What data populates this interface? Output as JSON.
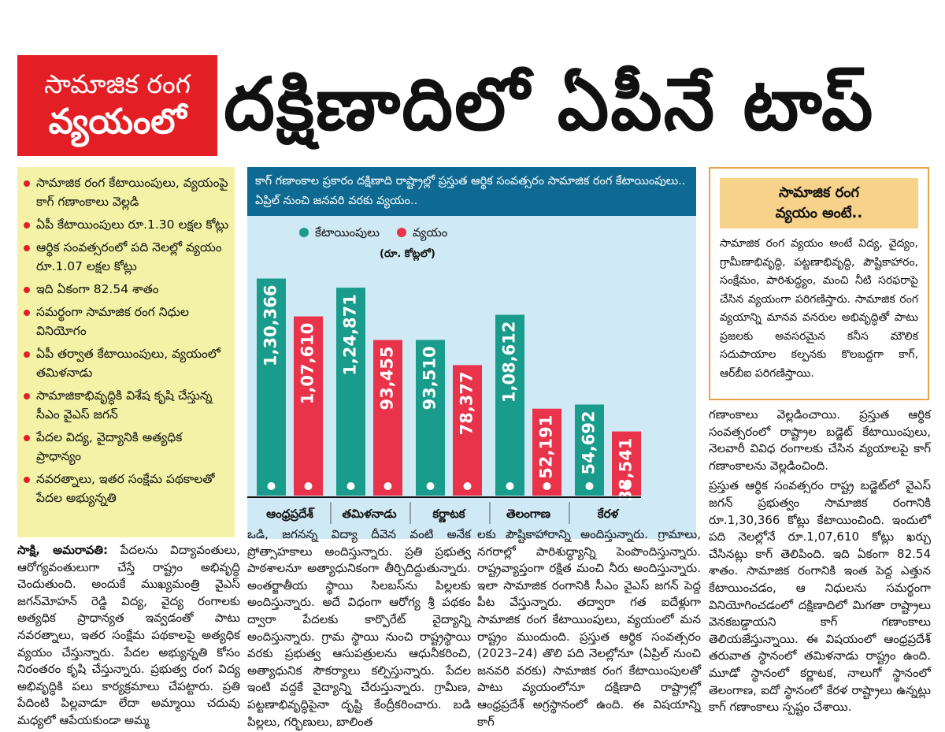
{
  "header": {
    "tag_line1": "సామాజిక రంగ",
    "tag_line2": "వ్యయంలో",
    "headline": "దక్షిణాదిలో ఏపీనే టాప్"
  },
  "bullets": [
    "సామాజిక రంగ కేటాయింపులు, వ్యయంపై కాగ్ గణాంకాలు వెల్లడి",
    "ఏపీ కేటాయింపులు రూ.1.30 లక్షల కోట్లు",
    "ఆర్థిక సంవత్సరంలో పది నెలల్లో వ్యయం రూ.1.07 లక్షల కోట్లు",
    "ఇది ఏకంగా 82.54 శాతం",
    "సమర్థంగా సామాజిక రంగ నిధుల వినియోగం",
    "ఏపీ తర్వాత కేటాయింపులు, వ్యయంలో తమిళనాడు",
    "సామాజికాభివృద్ధికి విశేష కృషి చేస్తున్న సీఎం వైఎస్ జగన్",
    "పేదల విద్య, వైద్యానికి అత్యధిక ప్రాధాన్యం",
    "నవరత్నాలు, ఇతర సంక్షేమ పథకాలతో పేదల అభ్యున్నతి"
  ],
  "chart_data": {
    "type": "bar",
    "title": "కాగ్ గణాంకాల ప్రకారం దక్షిణాది రాష్ట్రాల్లో ప్రస్తుత ఆర్థిక సంవత్సరం సామాజిక రంగ కేటాయింపులు.. ఏప్రిల్ నుంచి జనవరి వరకు వ్యయం..",
    "unit": "(రూ. కోట్లలో)",
    "categories": [
      "ఆంధ్రప్రదేశ్",
      "తమిళనాడు",
      "కర్ణాటక",
      "తెలంగాణ",
      "కేరళ"
    ],
    "series": [
      {
        "name": "కేటాయింపులు",
        "color": "#1a9c8c",
        "values": [
          130366,
          124871,
          93510,
          108612,
          54692
        ],
        "labels": [
          "1,30,366",
          "1,24,871",
          "93,510",
          "1,08,612",
          "54,692"
        ]
      },
      {
        "name": "వ్యయం",
        "color": "#e8334a",
        "values": [
          107610,
          93455,
          78377,
          52191,
          38541
        ],
        "labels": [
          "1,07,610",
          "93,455",
          "78,377",
          "52,191",
          "38,541"
        ]
      }
    ],
    "ylim": [
      0,
      150000
    ],
    "legend": "top-left",
    "grid": false
  },
  "info": {
    "title_line1": "సామాజిక రంగ",
    "title_line2": "వ్యయం అంటే..",
    "body": "సామాజిక రంగ వ్యయం అంటే విద్య, వైద్యం, గ్రామీణాభివృద్ధి, పట్టణాభివృద్ధి, పౌష్టికాహారం, సంక్షేమం, పారిశుద్ధ్యం, మంచి నీటి సరఫరాపై చేసిన వ్యయంగా పరిగణిస్తారు. సామాజిక రంగ వ్యయాన్ని మానవ వనరుల అభివృద్ధితో పాటు ప్రజలకు అవసరమైన కనీస మౌలిక సదుపాయాల కల్పనకు కొలబద్దగా కాగ్, ఆర్‌బీఐ పరిగణిస్తాయి."
  },
  "articles": {
    "col1_dateline": "సాక్షి, అమరావతి:",
    "col1_text": "పేదలను విద్యావంతులు, ఆరోగ్యవంతులుగా చేస్తే రాష్ట్రం అభివృద్ధి చెందుతుంది. అందుకే ముఖ్యమంత్రి వైఎస్ జగన్‌మోహన్ రెడ్డి విద్య, వైద్య రంగాలకు అత్యధిక ప్రాధాన్యత ఇవ్వడంతో పాటు నవరత్నాలు, ఇతర సంక్షేమ పథకాలపై అత్యధిక వ్యయం చేస్తున్నారు. పేదల అభ్యున్నతి కోసం నిరంతరం కృషి చేస్తున్నారు. ప్రభుత్వ రంగ విద్య అభివృద్ధికి పలు కార్యక్రమాలు చేపట్టారు. ప్రతి పేదింటి పిల్లవాడూ లేదా అమ్మాయి చదువు మధ్యలో ఆపేయకుండా అమ్మ",
    "col2_text": "ఒడి, జగనన్న విద్యా దీవెన వంటి అనేక ప్రోత్సాహకాలు అందిస్తున్నారు. ప్రతి ప్రభుత్వ పాఠశాలనూ అత్యాధునికంగా తీర్చిదిద్దుతున్నారు. అంతర్జాతీయ స్థాయి సిలబస్‌ను పిల్లలకు అందిస్తున్నారు. అదే విధంగా ఆరోగ్య శ్రీ పథకం ద్వారా పేదలకు కార్పొరేట్ వైద్యాన్ని అందిస్తున్నారు. గ్రామ స్థాయి నుంచి రాష్ట్రస్థాయి వరకు ప్రభుత్వ ఆసుపత్రులను ఆధునీకరించి, అత్యాధునిక సౌకర్యాలు కల్పిస్తున్నారు. పేదల ఇంటి వద్దకే వైద్యాన్ని చేరుస్తున్నారు. గ్రామీణ, పట్టణాభివృద్ధిపైనా దృష్టి కేంద్రీకరించారు. బడి పిల్లలు, గర్భిణులు, బాలింత",
    "col3_text": "లకు పౌష్టికాహారాన్ని అందిస్తున్నారు. గ్రామాలు, నగరాల్లో పారిశుద్ధ్యాన్ని పెంపొందిస్తున్నారు. రాష్ట్రవ్యాప్తంగా రక్షిత మంచి నీరు అందిస్తున్నారు. ఇలా సామాజిక రంగానికి సీఎం వైఎస్ జగన్ పెద్ద పీట వేస్తున్నారు. తద్వారా గత ఐదేళ్లుగా సామాజిక రంగ కేటాయింపులు, వ్యయంలో మన రాష్ట్రం ముందుంది. ప్రస్తుత ఆర్థిక సంవత్సరం (2023–24) తొలి పది నెలల్లోనూ (ఏప్రిల్ నుంచి జనవరి వరకు) సామాజిక రంగ కేటాయింపులతో పాటు వ్యయంలోనూ దక్షిణాది రాష్ట్రాల్లో ఆంధ్రప్రదేశ్ అగ్రస్థానంలో ఉంది. ఈ విషయాన్ని కాగ్",
    "right_p1": "గణాంకాలు వెల్లడించాయి. ప్రస్తుత ఆర్థిక సంవత్సరంలో రాష్ట్రాల బడ్జెట్ కేటాయింపులు, నెలవారీ వివిధ రంగాలకు చేసిన వ్యయాలపై కాగ్ గణాంకాలను వెల్లడించింది.",
    "right_p2": "ప్రస్తుత ఆర్థిక సంవత్సరం రాష్ట్ర బడ్జెట్‌లో వైఎస్ జగన్ ప్రభుత్వం సామాజిక రంగానికి రూ.1,30,366 కోట్లు కేటాయించింది. ఇందులో పది నెలల్లోనే రూ.1,07,610 కోట్లు ఖర్చు చేసినట్లు కాగ్ తెలిపింది. ఇది ఏకంగా 82.54 శాతం. సామాజిక రంగానికి ఇంత పెద్ద ఎత్తున కేటాయించడం, ఆ నిధులను సమర్థంగా వినియోగించడంలో దక్షిణాదిలో మిగతా రాష్ట్రాలు వెనకబడ్డాయని కాగ్ గణాంకాలు తెలియజేస్తున్నాయి. ఈ విషయంలో ఆంధ్రప్రదేశ్ తరువాత స్థానంలో తమిళనాడు రాష్ట్రం ఉంది. మూడో స్థానంలో కర్ణాటక, నాలుగో స్థానంలో తెలంగాణ, ఐదో స్థానంలో కేరళ రాష్ట్రాలు ఉన్నట్లు కాగ్ గణాంకాలు స్పష్టం చేశాయి."
  }
}
